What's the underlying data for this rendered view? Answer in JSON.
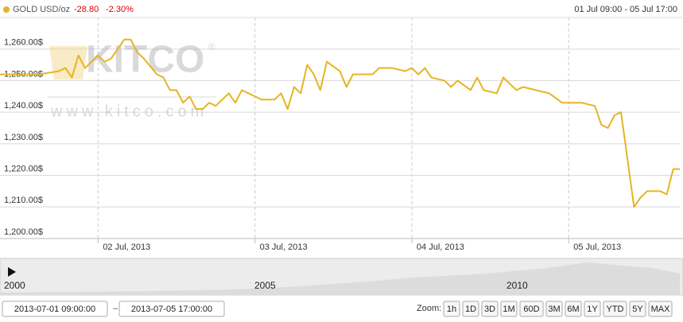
{
  "header": {
    "instrument": "GOLD USD/oz",
    "change": "-28.80",
    "change_percent": "-2.30%",
    "range": "01 Jul 09:00 - 05 Jul 17:00"
  },
  "watermark": {
    "logo": "KITCO",
    "mark": "®",
    "url": "www.kitco.com"
  },
  "chart_data": {
    "type": "line",
    "x": [
      "2013-07-01 09:00",
      "2013-07-01 12:00",
      "2013-07-01 15:00",
      "2013-07-01 18:00",
      "2013-07-01 19:00",
      "2013-07-01 20:00",
      "2013-07-01 21:00",
      "2013-07-01 22:00",
      "2013-07-02 00:00",
      "2013-07-02 01:00",
      "2013-07-02 02:00",
      "2013-07-02 04:00",
      "2013-07-02 05:00",
      "2013-07-02 06:00",
      "2013-07-02 07:00",
      "2013-07-02 09:00",
      "2013-07-02 10:00",
      "2013-07-02 11:00",
      "2013-07-02 12:00",
      "2013-07-02 13:00",
      "2013-07-02 14:00",
      "2013-07-02 15:00",
      "2013-07-02 16:00",
      "2013-07-02 17:00",
      "2013-07-02 18:00",
      "2013-07-02 20:00",
      "2013-07-02 21:00",
      "2013-07-02 22:00",
      "2013-07-03 00:00",
      "2013-07-03 01:00",
      "2013-07-03 03:00",
      "2013-07-03 04:00",
      "2013-07-03 05:00",
      "2013-07-03 06:00",
      "2013-07-03 07:00",
      "2013-07-03 08:00",
      "2013-07-03 09:00",
      "2013-07-03 10:00",
      "2013-07-03 11:00",
      "2013-07-03 13:00",
      "2013-07-03 14:00",
      "2013-07-03 15:00",
      "2013-07-03 16:00",
      "2013-07-03 18:00",
      "2013-07-03 19:00",
      "2013-07-03 21:00",
      "2013-07-03 23:00",
      "2013-07-04 00:00",
      "2013-07-04 01:00",
      "2013-07-04 02:00",
      "2013-07-04 03:00",
      "2013-07-04 05:00",
      "2013-07-04 06:00",
      "2013-07-04 07:00",
      "2013-07-04 09:00",
      "2013-07-04 10:00",
      "2013-07-04 11:00",
      "2013-07-04 13:00",
      "2013-07-04 14:00",
      "2013-07-04 16:00",
      "2013-07-04 17:00",
      "2013-07-04 19:00",
      "2013-07-04 21:00",
      "2013-07-04 23:00",
      "2013-07-05 00:00",
      "2013-07-05 02:00",
      "2013-07-05 04:00",
      "2013-07-05 05:00",
      "2013-07-05 06:00",
      "2013-07-05 07:00",
      "2013-07-05 08:00",
      "2013-07-05 10:00",
      "2013-07-05 11:00",
      "2013-07-05 12:00",
      "2013-07-05 14:00",
      "2013-07-05 15:00",
      "2013-07-05 16:00",
      "2013-07-05 17:00"
    ],
    "series": [
      {
        "name": "GOLD USD/oz",
        "color": "#e6b422",
        "values": [
          1252,
          1252,
          1252,
          1253,
          1254,
          1251,
          1258,
          1254,
          1258,
          1256,
          1257,
          1263,
          1263,
          1259,
          1257,
          1252,
          1251,
          1247,
          1247,
          1243,
          1245,
          1241,
          1241,
          1243,
          1242,
          1246,
          1243,
          1247,
          1245,
          1244,
          1244,
          1246,
          1241,
          1248,
          1246,
          1255,
          1252,
          1247,
          1256,
          1253,
          1248,
          1252,
          1252,
          1252,
          1254,
          1254,
          1253,
          1254,
          1252,
          1254,
          1251,
          1250,
          1248,
          1250,
          1247,
          1251,
          1247,
          1246,
          1251,
          1247,
          1248,
          1247,
          1246,
          1243,
          1243,
          1243,
          1242,
          1236,
          1235,
          1239,
          1240,
          1210,
          1213,
          1215,
          1215,
          1214,
          1222,
          1222
        ]
      }
    ],
    "xlim": [
      "2013-07-01 09:00",
      "2013-07-05 17:00"
    ],
    "xticks": [
      {
        "value": "2013-07-02 00:00",
        "label": "02 Jul, 2013"
      },
      {
        "value": "2013-07-03 00:00",
        "label": "03 Jul, 2013"
      },
      {
        "value": "2013-07-04 00:00",
        "label": "04 Jul, 2013"
      },
      {
        "value": "2013-07-05 00:00",
        "label": "05 Jul, 2013"
      }
    ],
    "ylim": [
      1200,
      1270
    ],
    "yticks": [
      {
        "value": 1200,
        "label": "1,200.00$"
      },
      {
        "value": 1210,
        "label": "1,210.00$"
      },
      {
        "value": 1220,
        "label": "1,220.00$"
      },
      {
        "value": 1230,
        "label": "1,230.00$"
      },
      {
        "value": 1240,
        "label": "1,240.00$"
      },
      {
        "value": 1250,
        "label": "1,250.00$"
      },
      {
        "value": 1260,
        "label": "1,260.00$"
      }
    ],
    "grid": true
  },
  "navigator": {
    "labels": [
      "2000",
      "2005",
      "2010"
    ]
  },
  "controls": {
    "from": "2013-07-01 09:00:00",
    "separator": "–",
    "to": "2013-07-05 17:00:00",
    "zoom_label": "Zoom:",
    "zoom_buttons": [
      "1h",
      "1D",
      "3D",
      "1M",
      "60D",
      "3M",
      "6M",
      "1Y",
      "YTD",
      "5Y",
      "MAX"
    ]
  }
}
